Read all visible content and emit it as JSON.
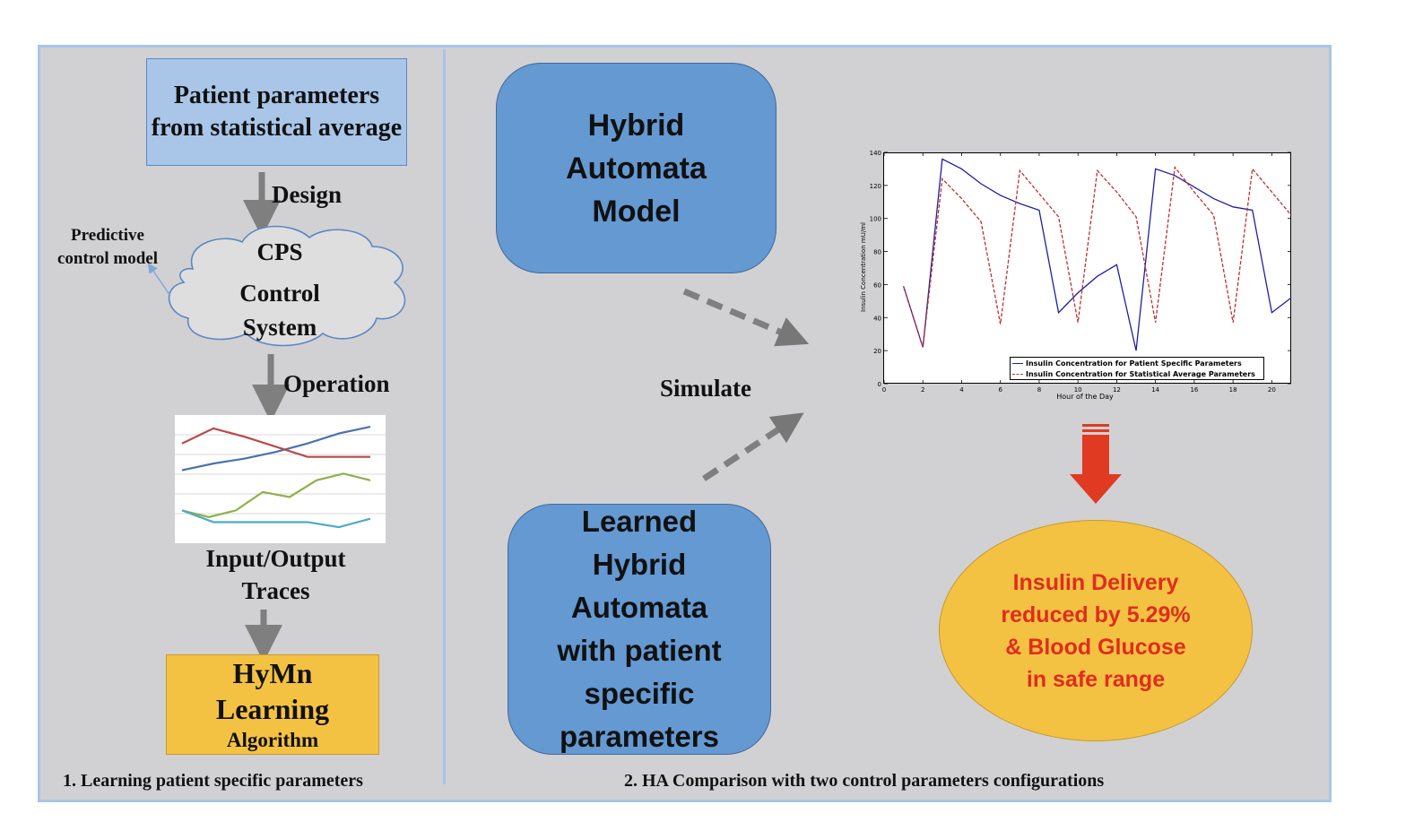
{
  "left_panel": {
    "patient_params": "Patient parameters from statistical average",
    "design_label": "Design",
    "predictive_label": "Predictive\ncontrol model",
    "cps_line1": "CPS",
    "cps_line2": "Control",
    "cps_line3": "System",
    "operation_label": "Operation",
    "traces_label": "Input/Output\nTraces",
    "hymn_line1": "HyMn",
    "hymn_line2": "Learning",
    "hymn_line3": "Algorithm",
    "caption": "1. Learning patient specific parameters"
  },
  "right_panel": {
    "ha_model": "Hybrid\nAutomata\nModel",
    "learned_ha": "Learned\nHybrid\nAutomata\nwith patient\nspecific\nparameters",
    "simulate_label": "Simulate",
    "result": "Insulin Delivery\nreduced by 5.29%\n& Blood Glucose\nin safe range",
    "caption": "2. HA Comparison with two control parameters configurations"
  },
  "colors": {
    "background": "#d1d1d3",
    "frame_border": "#a9c4e6",
    "blue_box": "#6499d2",
    "yellow": "#f4c242",
    "red_text": "#e02d1e",
    "arrow_gray": "#7f7f7f"
  },
  "chart_data": {
    "type": "line",
    "title": "",
    "xlabel": "Hour of the Day",
    "ylabel": "Insulin Concentration mU/ml",
    "xlim": [
      0,
      21
    ],
    "ylim": [
      0,
      140
    ],
    "xticks": [
      0,
      2,
      4,
      6,
      8,
      10,
      12,
      14,
      16,
      18,
      20
    ],
    "yticks": [
      0,
      20,
      40,
      60,
      80,
      100,
      120,
      140
    ],
    "legend_position": "bottom-right",
    "series": [
      {
        "name": "Insulin Concentration for Patient Specific Parameters",
        "color": "#1f1fa6",
        "style": "solid",
        "x": [
          1,
          2,
          3,
          4,
          5,
          6,
          7,
          8,
          9,
          10,
          11,
          12,
          13,
          14,
          15,
          16,
          17,
          18,
          19,
          20,
          21
        ],
        "y": [
          59,
          22,
          136,
          130,
          121,
          114,
          109,
          105,
          43,
          55,
          65,
          72,
          20,
          130,
          126,
          119,
          112,
          107,
          105,
          43,
          52
        ]
      },
      {
        "name": "Insulin Concentration for Statistical Average Parameters",
        "color": "#c03030",
        "style": "dashed",
        "x": [
          1,
          2,
          3,
          4,
          5,
          6,
          7,
          8,
          9,
          10,
          11,
          12,
          13,
          14,
          15,
          16,
          17,
          18,
          19,
          20,
          21
        ],
        "y": [
          59,
          22,
          124,
          112,
          98,
          36,
          129,
          115,
          101,
          37,
          129,
          116,
          101,
          37,
          131,
          116,
          102,
          37,
          130,
          116,
          102
        ]
      }
    ]
  },
  "traces_thumbnail": {
    "type": "line",
    "series": [
      {
        "color": "#4a72b0",
        "values": [
          3.2,
          3.6,
          3.9,
          4.3,
          4.8,
          5.4,
          5.8
        ]
      },
      {
        "color": "#b94a48",
        "values": [
          4.8,
          5.7,
          5.2,
          4.6,
          4.0,
          4.0,
          4.0
        ]
      },
      {
        "color": "#8fb04a",
        "values": [
          0.8,
          0.4,
          0.8,
          1.9,
          1.6,
          2.6,
          3.0,
          2.6
        ]
      },
      {
        "color": "#4bacc6",
        "values": [
          0.8,
          0.1,
          0.1,
          0.1,
          0.1,
          -0.2,
          0.3
        ]
      }
    ]
  }
}
